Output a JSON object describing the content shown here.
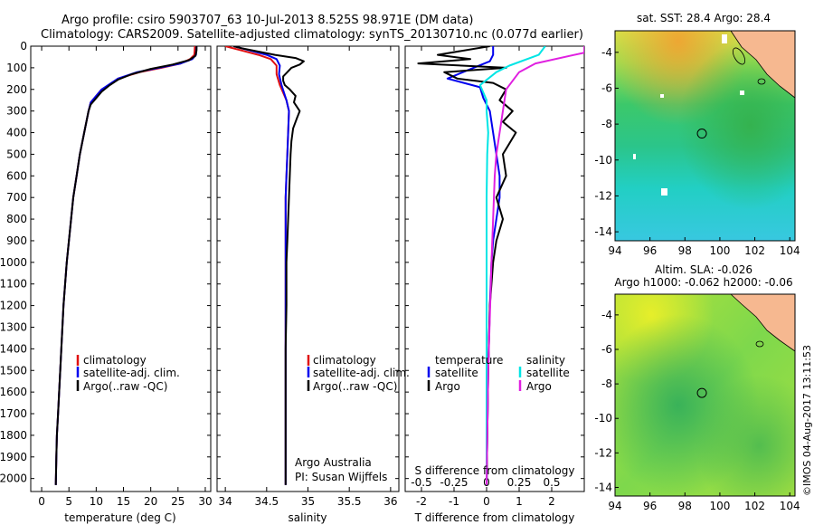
{
  "header": {
    "line1": "Argo profile: csiro 5903707_63 10-Jul-2013 8.525S 98.971E (DM data)",
    "line2": "Climatology: CARS2009. Satellite-adjusted climatology: synTS_20130710.nc (0.077d earlier)"
  },
  "credits": {
    "org": "Argo Australia",
    "pi": "PI: Susan Wijffels",
    "stamp": "©IMOS 04-Aug-2017 13:11:53"
  },
  "colors": {
    "climatology": "#e01010",
    "satellite": "#0000ee",
    "argo": "#000000",
    "s_satellite": "#00e5e5",
    "s_argo": "#e020e0"
  },
  "chart_data": [
    {
      "type": "line",
      "name": "temperature",
      "xlabel": "temperature (deg C)",
      "xlim": [
        -2,
        31
      ],
      "ylim": [
        2060,
        0
      ],
      "xticks": [
        "0",
        "5",
        "10",
        "15",
        "20",
        "25",
        "30"
      ],
      "yticks": [
        "0",
        "100",
        "200",
        "300",
        "400",
        "500",
        "600",
        "700",
        "800",
        "900",
        "1000",
        "1100",
        "1200",
        "1300",
        "1400",
        "1500",
        "1600",
        "1700",
        "1800",
        "1900",
        "2000"
      ],
      "legend": [
        "climatology",
        "satellite-adj. clim.",
        "Argo(..raw -QC)"
      ],
      "series": [
        {
          "name": "climatology",
          "x": [
            28.1,
            28.0,
            27.2,
            25.5,
            22,
            18,
            14,
            13,
            11,
            10,
            9,
            8.6,
            7.8,
            7,
            6.4,
            5.8,
            5.4,
            5,
            4.6,
            4.3,
            4,
            3.8,
            3.6,
            3.4,
            3.2,
            3.0,
            2.8,
            2.7,
            2.6
          ],
          "y": [
            0,
            40,
            60,
            80,
            100,
            120,
            150,
            170,
            200,
            230,
            260,
            300,
            400,
            500,
            600,
            700,
            800,
            900,
            1000,
            1100,
            1200,
            1300,
            1400,
            1500,
            1600,
            1700,
            1800,
            1900,
            2030
          ]
        },
        {
          "name": "satellite-adj. clim.",
          "x": [
            28.4,
            28.3,
            27.6,
            25.5,
            21.5,
            17.5,
            14,
            12.8,
            11,
            10,
            9,
            8.6,
            7.8,
            7,
            6.4,
            5.8,
            5.4,
            5,
            4.6,
            4.3,
            4,
            3.8,
            3.6,
            3.4,
            3.2,
            3.0,
            2.8,
            2.7,
            2.6
          ],
          "y": [
            0,
            40,
            60,
            80,
            100,
            120,
            150,
            170,
            200,
            230,
            260,
            300,
            400,
            500,
            600,
            700,
            800,
            900,
            1000,
            1100,
            1200,
            1300,
            1400,
            1500,
            1600,
            1700,
            1800,
            1900,
            2030
          ]
        },
        {
          "name": "Argo(..raw -QC)",
          "x": [
            28.4,
            28.4,
            28.2,
            27,
            24,
            20,
            16.5,
            14,
            12.5,
            11,
            10,
            9,
            8.6,
            7.8,
            7,
            6.4,
            5.8,
            5.4,
            5,
            4.6,
            4.3,
            4,
            3.8,
            3.6,
            3.4,
            3.2,
            3.0,
            2.8,
            2.7,
            2.6
          ],
          "y": [
            0,
            20,
            45,
            65,
            85,
            105,
            130,
            155,
            180,
            210,
            240,
            270,
            300,
            400,
            500,
            600,
            700,
            800,
            900,
            1000,
            1100,
            1200,
            1300,
            1400,
            1500,
            1600,
            1700,
            1800,
            1900,
            2030
          ]
        }
      ]
    },
    {
      "type": "line",
      "name": "salinity",
      "xlabel": "salinity",
      "xlim": [
        33.9,
        36.1
      ],
      "ylim": [
        2060,
        0
      ],
      "xticks": [
        "34",
        "34.5",
        "35",
        "35.5",
        "36"
      ],
      "legend": [
        "climatology",
        "satellite-adj. clim.",
        "Argo(..raw -QC)"
      ],
      "series": [
        {
          "name": "climatology",
          "x": [
            34.0,
            34.2,
            34.4,
            34.55,
            34.62,
            34.62,
            34.66,
            34.74,
            34.77,
            34.76,
            34.75,
            34.74,
            34.73,
            34.73,
            34.73,
            34.73,
            34.73,
            34.73,
            34.73,
            34.73
          ],
          "y": [
            0,
            20,
            40,
            60,
            90,
            130,
            180,
            250,
            300,
            400,
            500,
            600,
            700,
            800,
            1000,
            1200,
            1400,
            1600,
            1800,
            2030
          ]
        },
        {
          "name": "satellite-adj. clim.",
          "x": [
            34.1,
            34.3,
            34.5,
            34.62,
            34.66,
            34.65,
            34.68,
            34.74,
            34.77,
            34.76,
            34.75,
            34.74,
            34.73,
            34.73,
            34.73,
            34.73,
            34.73,
            34.73,
            34.73,
            34.73
          ],
          "y": [
            0,
            20,
            40,
            60,
            90,
            130,
            180,
            250,
            300,
            400,
            500,
            600,
            700,
            800,
            1000,
            1200,
            1400,
            1600,
            1800,
            2030
          ]
        },
        {
          "name": "Argo(..raw -QC)",
          "x": [
            34.1,
            34.2,
            34.4,
            34.6,
            34.85,
            34.95,
            34.9,
            34.8,
            34.75,
            34.7,
            34.7,
            34.72,
            34.78,
            34.85,
            34.83,
            34.9,
            34.87,
            34.82,
            34.8,
            34.79,
            34.78,
            34.77,
            34.76,
            34.75,
            34.74,
            34.74,
            34.73,
            34.73,
            34.73
          ],
          "y": [
            0,
            10,
            25,
            40,
            55,
            70,
            85,
            100,
            120,
            140,
            160,
            180,
            200,
            230,
            260,
            300,
            330,
            380,
            440,
            500,
            600,
            700,
            800,
            900,
            1000,
            1200,
            1400,
            1700,
            2030
          ]
        }
      ]
    },
    {
      "type": "line",
      "name": "difference",
      "xlabel": "T difference from climatology",
      "x2label": "S difference from climatology",
      "xlim": [
        -2.5,
        3
      ],
      "ylim": [
        2060,
        0
      ],
      "xticks": [
        "-2",
        "-1",
        "0",
        "1",
        "2"
      ],
      "x2ticks": [
        "-0.5",
        "-0.25",
        "0",
        "0.25",
        "0.5"
      ],
      "legend": [
        "temperature",
        "satellite",
        "Argo",
        "salinity",
        "satellite",
        "Argo"
      ],
      "series": [
        {
          "name": "T satellite",
          "x": [
            0.2,
            0.2,
            0.1,
            -0.4,
            -1.2,
            -0.2,
            -0.1,
            0.1,
            0.2,
            0.3,
            0.4,
            0.4,
            0.3,
            0.2,
            0.15,
            0.1,
            0.05,
            0.0
          ],
          "y": [
            0,
            40,
            70,
            100,
            150,
            190,
            240,
            300,
            400,
            500,
            600,
            700,
            800,
            900,
            1000,
            1200,
            1500,
            2030
          ]
        },
        {
          "name": "T Argo",
          "x": [
            0.1,
            -1.5,
            -0.5,
            -2.1,
            0.6,
            -1.3,
            -0.9,
            0.2,
            0.6,
            0.4,
            0.8,
            0.5,
            0.9,
            0.7,
            0.5,
            0.6,
            0.3,
            0.5,
            0.3,
            0.2,
            0.1,
            0.05,
            0.0
          ],
          "y": [
            0,
            40,
            60,
            80,
            100,
            120,
            150,
            170,
            200,
            250,
            300,
            350,
            400,
            450,
            500,
            600,
            700,
            800,
            900,
            1000,
            1200,
            1500,
            2030
          ]
        },
        {
          "name": "S satellite",
          "x": [
            1.8,
            1.6,
            0.7,
            0.3,
            -0.2,
            0.0,
            0.0,
            0.05,
            0.02,
            0.0,
            0.0,
            0.0,
            0.0
          ],
          "y": [
            0,
            40,
            90,
            120,
            180,
            250,
            300,
            400,
            500,
            700,
            1000,
            1500,
            2030
          ]
        },
        {
          "name": "S Argo",
          "x": [
            3.0,
            3.0,
            1.5,
            1.0,
            0.6,
            0.5,
            0.4,
            0.3,
            0.25,
            0.2,
            0.15,
            0.05,
            0.0
          ],
          "y": [
            0,
            30,
            80,
            120,
            200,
            300,
            400,
            500,
            600,
            800,
            1000,
            1500,
            2030
          ]
        }
      ]
    },
    {
      "type": "heatmap",
      "name": "sst-map",
      "title": "sat. SST: 28.4 Argo: 28.4",
      "xlim": [
        94,
        104.3
      ],
      "ylim": [
        -14.5,
        -2.8
      ],
      "xticks": [
        "94",
        "96",
        "98",
        "100",
        "102",
        "104"
      ],
      "yticks": [
        "-4",
        "-6",
        "-8",
        "-10",
        "-12",
        "-14"
      ],
      "marker": {
        "x": 98.971,
        "y": -8.525
      }
    },
    {
      "type": "heatmap",
      "name": "sla-map",
      "title": "Altim. SLA: -0.026",
      "subtitle": "Argo h1000: -0.062 h2000: -0.06",
      "xlim": [
        94,
        104.3
      ],
      "ylim": [
        -14.5,
        -2.8
      ],
      "xticks": [
        "94",
        "96",
        "98",
        "100",
        "102",
        "104"
      ],
      "yticks": [
        "-4",
        "-6",
        "-8",
        "-10",
        "-12",
        "-14"
      ],
      "marker": {
        "x": 98.971,
        "y": -8.525
      }
    }
  ]
}
